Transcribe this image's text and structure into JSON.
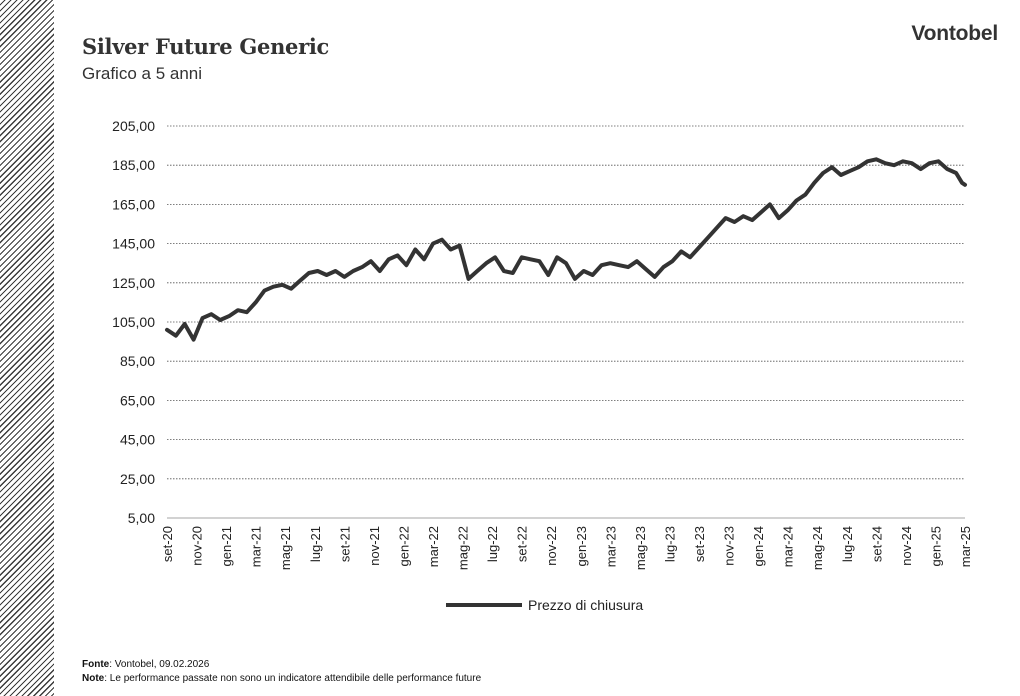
{
  "header": {
    "title": "Silver Future Generic",
    "subtitle": "Grafico a 5 anni",
    "brand": "Vontobel"
  },
  "footer": {
    "source_label": "Fonte",
    "source_text": ": Vontobel, 09.02.2026",
    "note_label": "Note",
    "note_text": ": Le performance passate non sono un indicatore attendibile delle performance future"
  },
  "colors": {
    "line": "#333333",
    "grid": "#555555",
    "hatch": "#3a3a3a"
  },
  "chart_data": {
    "type": "line",
    "title": "Silver Future Generic",
    "xlabel": "",
    "ylabel": "",
    "ylim": [
      5,
      205
    ],
    "yticks": [
      "5,00",
      "25,00",
      "45,00",
      "65,00",
      "85,00",
      "105,00",
      "125,00",
      "145,00",
      "165,00",
      "185,00",
      "205,00"
    ],
    "ytick_values": [
      5,
      25,
      45,
      65,
      85,
      105,
      125,
      145,
      165,
      185,
      205
    ],
    "xticks": [
      "set-20",
      "nov-20",
      "gen-21",
      "mar-21",
      "mag-21",
      "lug-21",
      "set-21",
      "nov-21",
      "gen-22",
      "mar-22",
      "mag-22",
      "lug-22",
      "set-22",
      "nov-22",
      "gen-23",
      "mar-23",
      "mag-23",
      "lug-23",
      "set-23",
      "nov-23",
      "gen-24",
      "mar-24",
      "mag-24",
      "lug-24",
      "set-24",
      "nov-24",
      "gen-25",
      "mar-25"
    ],
    "grid": "horizontal dotted",
    "legend": "bottom-center",
    "series": [
      {
        "name": "Prezzo di chiusura",
        "x": [
          0,
          0.3,
          0.6,
          0.9,
          1.2,
          1.5,
          1.8,
          2.1,
          2.4,
          2.7,
          3.0,
          3.3,
          3.6,
          3.9,
          4.2,
          4.5,
          4.8,
          5.1,
          5.4,
          5.7,
          6.0,
          6.3,
          6.6,
          6.9,
          7.2,
          7.5,
          7.8,
          8.1,
          8.4,
          8.7,
          9.0,
          9.3,
          9.6,
          9.9,
          10.2,
          10.5,
          10.8,
          11.1,
          11.4,
          11.7,
          12.0,
          12.3,
          12.6,
          12.9,
          13.2,
          13.5,
          13.8,
          14.1,
          14.4,
          14.7,
          15.0,
          15.3,
          15.6,
          15.9,
          16.2,
          16.5,
          16.8,
          17.1,
          17.4,
          17.7,
          18.0,
          18.3,
          18.6,
          18.9,
          19.2,
          19.5,
          19.8,
          20.1,
          20.4,
          20.7,
          21.0,
          21.3,
          21.6,
          21.9,
          22.2,
          22.5,
          22.8,
          23.1,
          23.4,
          23.7,
          24.0,
          24.3,
          24.6,
          24.9,
          25.2,
          25.5,
          25.8,
          26.1,
          26.4,
          26.7,
          26.9,
          27.0
        ],
        "values": [
          101,
          98,
          104,
          96,
          107,
          109,
          106,
          108,
          111,
          110,
          115,
          121,
          123,
          124,
          122,
          126,
          130,
          131,
          129,
          131,
          128,
          131,
          133,
          136,
          131,
          137,
          139,
          134,
          142,
          137,
          145,
          147,
          142,
          144,
          127,
          131,
          135,
          138,
          131,
          130,
          138,
          137,
          136,
          129,
          138,
          135,
          127,
          131,
          129,
          134,
          135,
          134,
          133,
          136,
          132,
          128,
          133,
          136,
          141,
          138,
          143,
          148,
          153,
          158,
          156,
          159,
          157,
          161,
          165,
          158,
          162,
          167,
          170,
          176,
          181,
          184,
          180,
          182,
          184,
          187,
          188,
          186,
          185,
          187,
          186,
          183,
          186,
          187,
          183,
          181,
          176,
          175
        ]
      }
    ]
  }
}
